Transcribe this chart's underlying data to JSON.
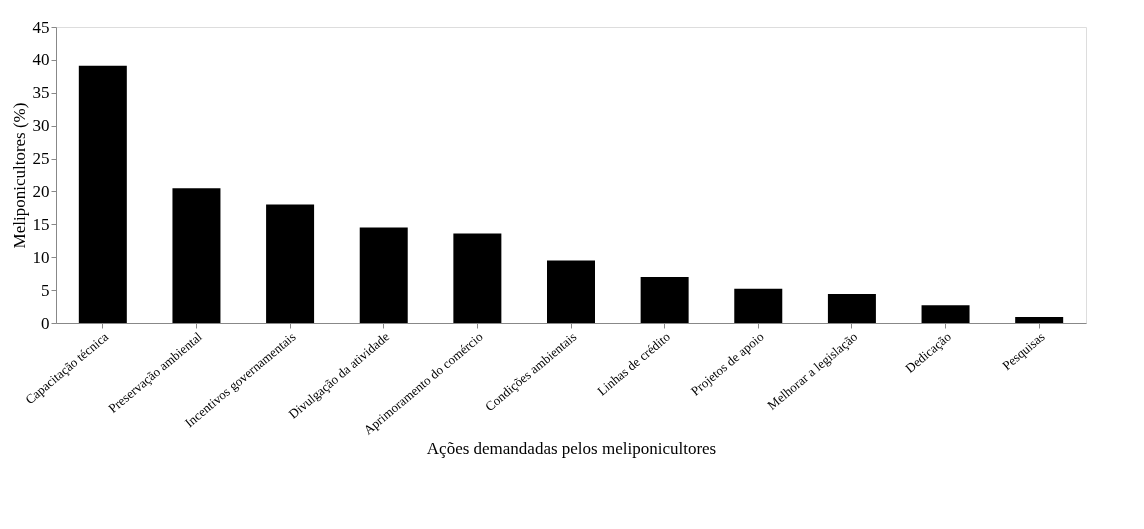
{
  "chart_data": {
    "type": "bar",
    "xlabel": "Ações demandadas pelos meliponicultores",
    "ylabel": "Meliponicultores (%)",
    "categories": [
      "Capacitação técnica",
      "Preservação ambiental",
      "Incentivos governamentais",
      "Divulgação da atividade",
      "Aprimoramento do comércio",
      "Condições ambientais",
      "Linhas de crédito",
      "Projetos de apoio",
      "Melhorar a legislação",
      "Dedicação",
      "Pesquisas"
    ],
    "values": [
      39.1,
      20.5,
      18.0,
      14.5,
      13.6,
      9.5,
      7.0,
      5.2,
      4.4,
      2.7,
      0.9
    ],
    "color": "#000000",
    "ylim": [
      0,
      45
    ],
    "yticks": [
      0,
      5,
      10,
      15,
      20,
      25,
      30,
      35,
      40,
      45
    ],
    "grid": false
  }
}
